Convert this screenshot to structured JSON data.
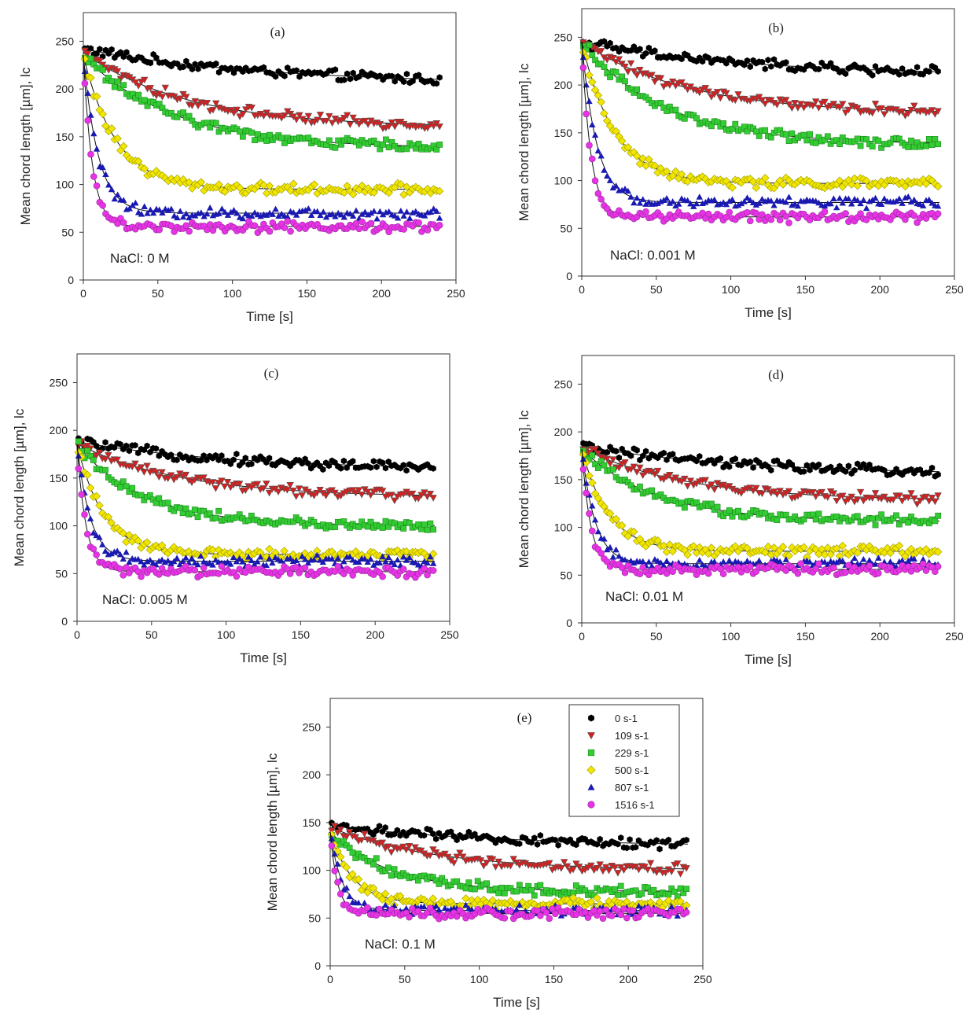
{
  "figure": {
    "legend": {
      "entries": [
        {
          "label": "0 s-1",
          "color": "#000000",
          "marker": "hexagon-icon"
        },
        {
          "label": "109 s-1",
          "color": "#d42020",
          "marker": "triangle-down-icon"
        },
        {
          "label": "229 s-1",
          "color": "#33cc33",
          "marker": "square-icon"
        },
        {
          "label": "500 s-1",
          "color": "#f2e600",
          "marker": "diamond-icon"
        },
        {
          "label": "807 s-1",
          "color": "#1a1ab3",
          "marker": "triangle-up-icon"
        },
        {
          "label": "1516 s-1",
          "color": "#e633e6",
          "marker": "circle-icon"
        }
      ]
    }
  },
  "chart_data": [
    {
      "type": "scatter",
      "title": "(a)",
      "annotation": "NaCl: 0 M",
      "xlabel": "Time [s]",
      "ylabel": "Mean chord length [µm], lc",
      "xlim": [
        0,
        250
      ],
      "ylim": [
        0,
        280
      ],
      "xticks": [
        "0",
        "50",
        "100",
        "150",
        "200",
        "250"
      ],
      "yticks": [
        "0",
        "50",
        "100",
        "150",
        "200",
        "250"
      ],
      "x_range": [
        0,
        240
      ],
      "series": [
        {
          "name": "0 s-1",
          "start": 242,
          "end": 205,
          "tau": 120
        },
        {
          "name": "109 s-1",
          "start": 238,
          "end": 160,
          "tau": 70
        },
        {
          "name": "229 s-1",
          "start": 235,
          "end": 138,
          "tau": 60
        },
        {
          "name": "500 s-1",
          "start": 235,
          "end": 95,
          "tau": 22
        },
        {
          "name": "807 s-1",
          "start": 235,
          "end": 70,
          "tau": 10
        },
        {
          "name": "1516 s-1",
          "start": 235,
          "end": 56,
          "tau": 6
        }
      ]
    },
    {
      "type": "scatter",
      "title": "(b)",
      "annotation": "NaCl: 0.001 M",
      "xlabel": "Time [s]",
      "ylabel": "Mean chord length [µm], lc",
      "xlim": [
        0,
        250
      ],
      "ylim": [
        0,
        280
      ],
      "xticks": [
        "0",
        "50",
        "100",
        "150",
        "200",
        "250"
      ],
      "yticks": [
        "0",
        "50",
        "100",
        "150",
        "200",
        "250"
      ],
      "x_range": [
        0,
        240
      ],
      "series": [
        {
          "name": "0 s-1",
          "start": 245,
          "end": 210,
          "tau": 110
        },
        {
          "name": "109 s-1",
          "start": 245,
          "end": 170,
          "tau": 70
        },
        {
          "name": "229 s-1",
          "start": 245,
          "end": 138,
          "tau": 55
        },
        {
          "name": "500 s-1",
          "start": 245,
          "end": 97,
          "tau": 22
        },
        {
          "name": "807 s-1",
          "start": 245,
          "end": 77,
          "tau": 10
        },
        {
          "name": "1516 s-1",
          "start": 245,
          "end": 62,
          "tau": 6
        }
      ]
    },
    {
      "type": "scatter",
      "title": "(c)",
      "annotation": "NaCl: 0.005 M",
      "xlabel": "Time [s]",
      "ylabel": "Mean chord length [µm], lc",
      "xlim": [
        0,
        250
      ],
      "ylim": [
        0,
        280
      ],
      "xticks": [
        "0",
        "50",
        "100",
        "150",
        "200",
        "250"
      ],
      "yticks": [
        "0",
        "50",
        "100",
        "150",
        "200",
        "250"
      ],
      "x_range": [
        0,
        240
      ],
      "series": [
        {
          "name": "0 s-1",
          "start": 188,
          "end": 158,
          "tau": 110
        },
        {
          "name": "109 s-1",
          "start": 186,
          "end": 130,
          "tau": 70
        },
        {
          "name": "229 s-1",
          "start": 185,
          "end": 100,
          "tau": 45
        },
        {
          "name": "500 s-1",
          "start": 185,
          "end": 70,
          "tau": 18
        },
        {
          "name": "807 s-1",
          "start": 185,
          "end": 63,
          "tau": 9
        },
        {
          "name": "1516 s-1",
          "start": 185,
          "end": 52,
          "tau": 6
        }
      ]
    },
    {
      "type": "scatter",
      "title": "(d)",
      "annotation": "NaCl: 0.01 M",
      "xlabel": "Time [s]",
      "ylabel": "Mean chord length [µm], lc",
      "xlim": [
        0,
        250
      ],
      "ylim": [
        0,
        280
      ],
      "xticks": [
        "0",
        "50",
        "100",
        "150",
        "200",
        "250"
      ],
      "yticks": [
        "0",
        "50",
        "100",
        "150",
        "200",
        "250"
      ],
      "x_range": [
        0,
        240
      ],
      "series": [
        {
          "name": "0 s-1",
          "start": 185,
          "end": 155,
          "tau": 110
        },
        {
          "name": "109 s-1",
          "start": 183,
          "end": 128,
          "tau": 70
        },
        {
          "name": "229 s-1",
          "start": 182,
          "end": 106,
          "tau": 50
        },
        {
          "name": "500 s-1",
          "start": 182,
          "end": 75,
          "tau": 18
        },
        {
          "name": "807 s-1",
          "start": 182,
          "end": 62,
          "tau": 9
        },
        {
          "name": "1516 s-1",
          "start": 182,
          "end": 56,
          "tau": 6
        }
      ]
    },
    {
      "type": "scatter",
      "title": "(e)",
      "annotation": "NaCl: 0.1 M",
      "xlabel": "Time [s]",
      "ylabel": "Mean chord length [µm], lc",
      "xlim": [
        0,
        250
      ],
      "ylim": [
        0,
        280
      ],
      "xticks": [
        "0",
        "50",
        "100",
        "150",
        "200",
        "250"
      ],
      "yticks": [
        "0",
        "50",
        "100",
        "150",
        "200",
        "250"
      ],
      "x_range": [
        0,
        240
      ],
      "series": [
        {
          "name": "0 s-1",
          "start": 147,
          "end": 125,
          "tau": 110
        },
        {
          "name": "109 s-1",
          "start": 145,
          "end": 100,
          "tau": 70
        },
        {
          "name": "229 s-1",
          "start": 140,
          "end": 78,
          "tau": 40
        },
        {
          "name": "500 s-1",
          "start": 140,
          "end": 65,
          "tau": 15
        },
        {
          "name": "807 s-1",
          "start": 140,
          "end": 58,
          "tau": 8
        },
        {
          "name": "1516 s-1",
          "start": 140,
          "end": 55,
          "tau": 5
        }
      ]
    }
  ]
}
